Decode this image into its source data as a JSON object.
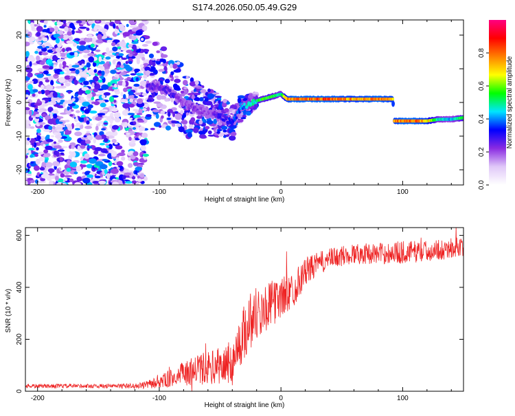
{
  "figure": {
    "title": "S174.2026.050.05.49.G29"
  },
  "chart_data": [
    {
      "type": "heatmap",
      "title": "S174.2026.050.05.49.G29",
      "xlabel": "Height of straight line (km)",
      "ylabel": "Frequency (Hz)",
      "xlim": [
        -210,
        150
      ],
      "ylim": [
        -24.5,
        24.5
      ],
      "xticks": [
        -200,
        -100,
        0,
        100
      ],
      "yticks": [
        -20,
        -10,
        0,
        10,
        20
      ],
      "xtick_labels": [
        "-200",
        "-100",
        "0",
        "100"
      ],
      "ytick_labels": [
        "-20",
        "-10",
        "0",
        "10",
        "20"
      ],
      "colorbar": {
        "label": "Normalized spectral amplitude",
        "range": [
          0,
          1
        ],
        "ticks": [
          0.0,
          0.2,
          0.4,
          0.6,
          0.8
        ],
        "tick_labels": [
          "0.0",
          "0.2",
          "0.4",
          "0.6",
          "0.8"
        ],
        "colors": [
          "#ffffff",
          "#e0c8f8",
          "#8a2be2",
          "#0000ff",
          "#00e5ff",
          "#00ff00",
          "#ffff00",
          "#ff8000",
          "#ff0000",
          "#ff0080"
        ]
      },
      "noise_region_x": [
        -210,
        -110
      ],
      "transition_region_x": [
        -110,
        -20
      ],
      "ridge": {
        "x": [
          -110,
          -100,
          -90,
          -80,
          -70,
          -60,
          -50,
          -40,
          -35,
          -30,
          -20,
          -10,
          0,
          5,
          10,
          20,
          40,
          60,
          80,
          92,
          93,
          100,
          110,
          120,
          130,
          140,
          150
        ],
        "freq": [
          5,
          4.5,
          3,
          0,
          -2,
          -3,
          -4,
          -6,
          -3,
          -1,
          0.5,
          1.5,
          2.5,
          1,
          1,
          1,
          1,
          1,
          1,
          1,
          -5.5,
          -5.5,
          -5.5,
          -5.5,
          -5,
          -5,
          -4.5
        ],
        "amplitude": [
          0.3,
          0.25,
          0.3,
          0.2,
          0.25,
          0.2,
          0.3,
          0.35,
          0.4,
          0.45,
          0.55,
          0.6,
          0.5,
          0.8,
          0.85,
          0.85,
          0.85,
          0.8,
          0.85,
          0.8,
          0.8,
          0.85,
          0.85,
          0.8,
          0.5,
          0.45,
          0.6
        ]
      }
    },
    {
      "type": "line",
      "xlabel": "Height of straight line (km)",
      "ylabel": "SNR (10 * v/v)",
      "xlim": [
        -210,
        150
      ],
      "ylim": [
        0,
        630
      ],
      "xticks": [
        -200,
        -100,
        0,
        100
      ],
      "yticks": [
        0,
        200,
        400,
        600
      ],
      "xtick_labels": [
        "-200",
        "-100",
        "0",
        "100"
      ],
      "ytick_labels": [
        "0",
        "200",
        "400",
        "600"
      ],
      "color": "#ee2222",
      "series": [
        {
          "name": "SNR",
          "x": [
            -210,
            -180,
            -150,
            -120,
            -110,
            -100,
            -90,
            -80,
            -70,
            -60,
            -50,
            -40,
            -30,
            -25,
            -20,
            -10,
            0,
            10,
            20,
            30,
            40,
            50,
            60,
            80,
            100,
            120,
            140,
            150
          ],
          "values": [
            20,
            20,
            20,
            20,
            25,
            35,
            50,
            65,
            80,
            90,
            95,
            110,
            230,
            280,
            300,
            330,
            360,
            390,
            460,
            490,
            510,
            520,
            530,
            530,
            535,
            540,
            550,
            560
          ],
          "noise_amplitude": [
            8,
            8,
            8,
            10,
            15,
            25,
            35,
            50,
            60,
            65,
            70,
            90,
            110,
            120,
            110,
            90,
            80,
            70,
            55,
            45,
            40,
            40,
            40,
            40,
            45,
            40,
            40,
            40
          ]
        }
      ]
    }
  ]
}
